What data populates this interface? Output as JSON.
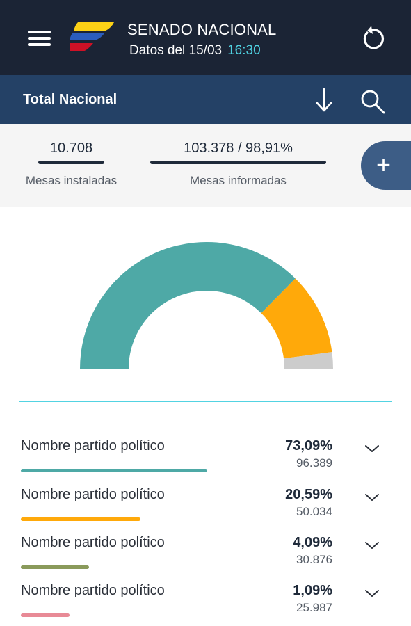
{
  "header": {
    "title": "SENADO NACIONAL",
    "date_label": "Datos del 15/03",
    "time_label": "16:30"
  },
  "subheader": {
    "scope_label": "Total Nacional"
  },
  "stats": {
    "mesas_instaladas": {
      "value": "10.708",
      "label": "Mesas instaladas"
    },
    "mesas_informadas": {
      "value": "103.378 / 98,91%",
      "label": "Mesas informadas"
    }
  },
  "colors": {
    "header_bg": "#1b2435",
    "subheader_bg": "#244166",
    "accent_cyan": "#52d3e2",
    "party_1": "#4ea9a6",
    "party_2": "#ffa90a",
    "party_3": "#8a9a5b",
    "party_4": "#e88a96",
    "gauge_rest": "#cccccc"
  },
  "chart_data": {
    "type": "pie",
    "variant": "semicircle-donut",
    "slices": [
      {
        "value": 73.09,
        "color": "#4ea9a6"
      },
      {
        "value": 20.59,
        "color": "#ffa90a"
      },
      {
        "value": 4.09,
        "color": "#cccccc"
      }
    ]
  },
  "parties": [
    {
      "name": "Nombre partido político",
      "percent": "73,09%",
      "votes": "96.389",
      "share": 73.09,
      "color": "#4ea9a6"
    },
    {
      "name": "Nombre partido político",
      "percent": "20,59%",
      "votes": "50.034",
      "share": 20.59,
      "color": "#ffa90a"
    },
    {
      "name": "Nombre partido político",
      "percent": "4,09%",
      "votes": "30.876",
      "share": 4.09,
      "color": "#8a9a5b"
    },
    {
      "name": "Nombre partido político",
      "percent": "1,09%",
      "votes": "25.987",
      "share": 1.09,
      "color": "#e88a96"
    }
  ],
  "icons": {
    "menu": "hamburger-icon",
    "logo": "flag-logo",
    "refresh": "refresh-icon",
    "download": "arrow-down-icon",
    "search": "search-icon",
    "add": "plus-icon",
    "expand": "chevron-down-icon"
  }
}
